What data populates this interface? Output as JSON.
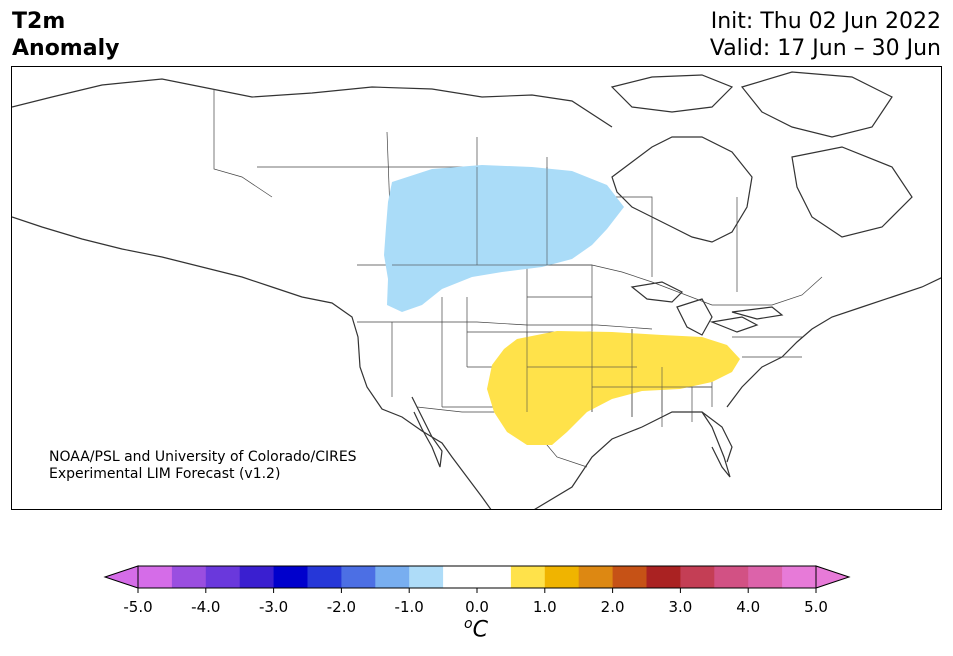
{
  "title": {
    "line1": "T2m",
    "line2": "Anomaly"
  },
  "init": "Init: Thu 02 Jun 2022",
  "valid": "Valid: 17 Jun – 30 Jun",
  "credit": {
    "line1": "NOAA/PSL and University of Colorado/CIRES",
    "line2": "Experimental LIM Forecast (v1.2)"
  },
  "colorbar": {
    "unit_sup": "o",
    "unit": "C",
    "ticks": [
      "-5.0",
      "-4.0",
      "-3.0",
      "-2.0",
      "-1.0",
      "0.0",
      "1.0",
      "2.0",
      "3.0",
      "4.0",
      "5.0"
    ],
    "colors": [
      "#d56ce8",
      "#9a4ee0",
      "#6a38dc",
      "#3a1fd0",
      "#0000cc",
      "#2637d8",
      "#4c6fe4",
      "#78aef0",
      "#aedcf8",
      "#ffffff",
      "#ffffff",
      "#ffe24a",
      "#f0b400",
      "#dd8812",
      "#c65216",
      "#aa2222",
      "#c43e55",
      "#d25184",
      "#dc63aa",
      "#e77ad8"
    ],
    "extend_low_color": "#d56ce8",
    "extend_high_color": "#e77ad8"
  },
  "anomalies": {
    "cold": {
      "color": "#aadcf8",
      "value_c": -0.75
    },
    "warm": {
      "color": "#ffe24a",
      "value_c": 0.75
    }
  }
}
